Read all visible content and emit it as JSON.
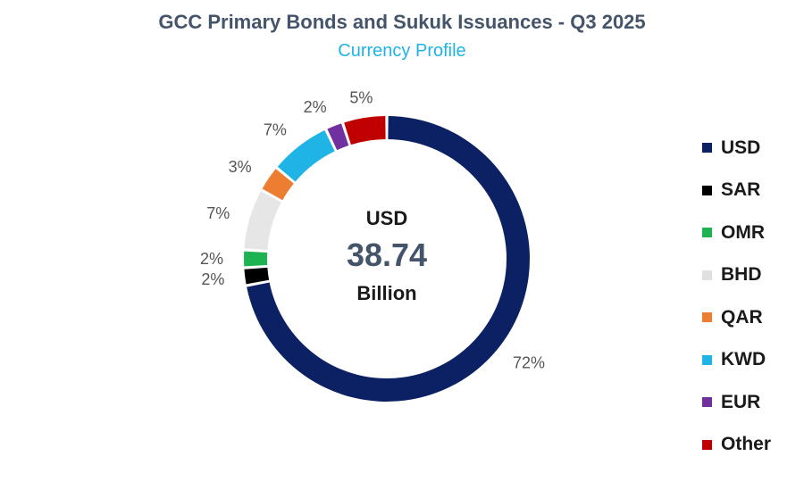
{
  "chart_data": {
    "type": "pie",
    "title": "GCC Primary Bonds and Sukuk Issuances - Q3 2025",
    "subtitle": "Currency Profile",
    "center": {
      "unit": "USD",
      "value": "38.74",
      "scale": "Billion"
    },
    "categories": [
      "USD",
      "SAR",
      "OMR",
      "BHD",
      "QAR",
      "KWD",
      "EUR",
      "Other"
    ],
    "values": [
      72,
      2,
      2,
      7,
      3,
      7,
      2,
      5
    ],
    "labels": [
      "72%",
      "2%",
      "2%",
      "7%",
      "3%",
      "7%",
      "2%",
      "5%"
    ],
    "colors": [
      "#0b2163",
      "#000000",
      "#1db353",
      "#e6e6e6",
      "#ed7d31",
      "#1fb3e6",
      "#7030a0",
      "#c00000"
    ],
    "legend_position": "right",
    "grid": false
  }
}
